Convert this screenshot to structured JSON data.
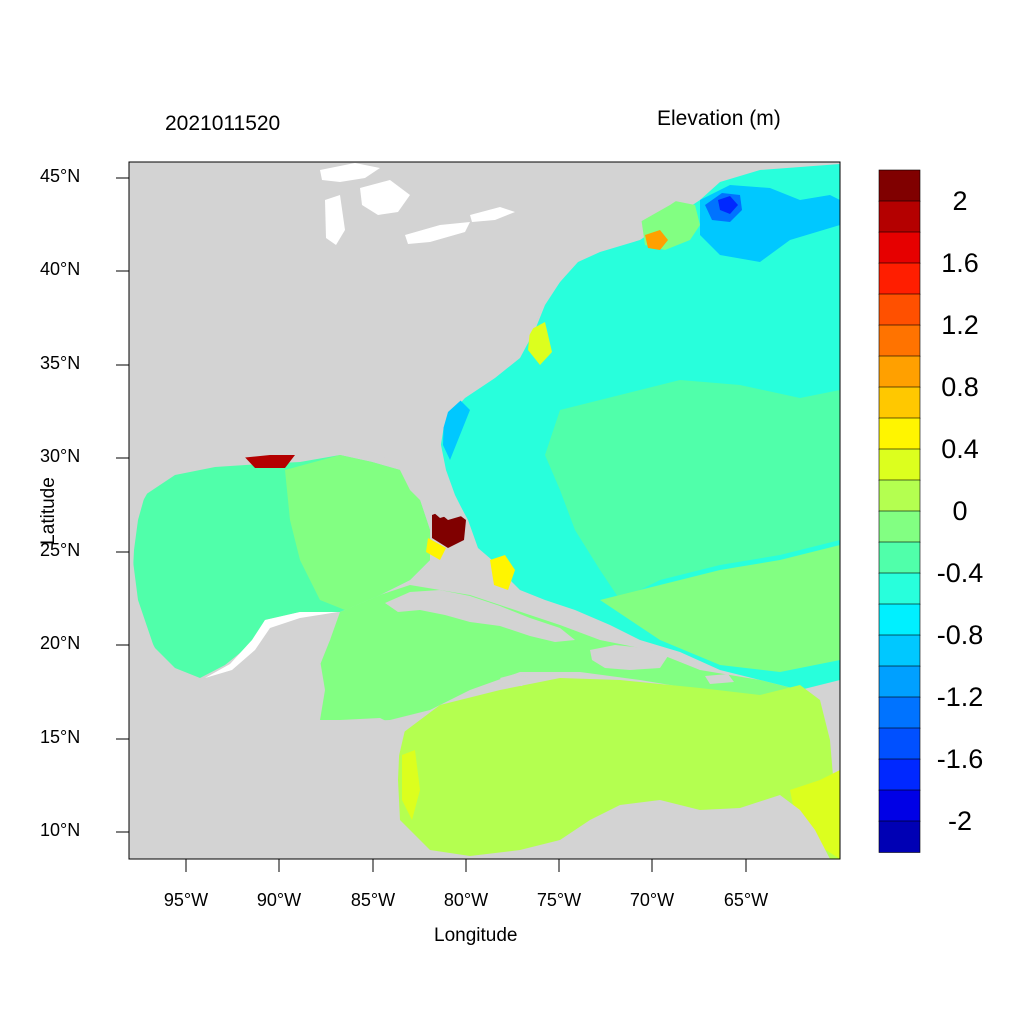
{
  "figure": {
    "title_left": "2021011520",
    "title_right": "Elevation (m)",
    "xlabel": "Longitude",
    "ylabel": "Latitude"
  },
  "map": {
    "lon_range": [
      -98,
      -60
    ],
    "lat_range": [
      8.5,
      46
    ],
    "land_color": "#d3d3d3",
    "lake_color": "#ffffff",
    "x_ticks": [
      "95°W",
      "90°W",
      "85°W",
      "80°W",
      "75°W",
      "70°W",
      "65°W"
    ],
    "y_ticks": [
      "45°N",
      "40°N",
      "35°N",
      "30°N",
      "25°N",
      "20°N",
      "15°N",
      "10°N"
    ]
  },
  "colorbar": {
    "colors": [
      "#800000",
      "#b40000",
      "#e60000",
      "#ff1e00",
      "#ff5000",
      "#ff7300",
      "#ffa000",
      "#ffc800",
      "#fff500",
      "#dcff1e",
      "#b4ff50",
      "#82ff82",
      "#50ffaa",
      "#28ffdc",
      "#00f0ff",
      "#00c8ff",
      "#00a0ff",
      "#0073ff",
      "#0050ff",
      "#0028ff",
      "#0000e6",
      "#0000b4"
    ],
    "tick_labels": [
      "2",
      "1.6",
      "1.2",
      "0.8",
      "0.4",
      "0",
      "-0.4",
      "-0.8",
      "-1.2",
      "-1.6",
      "-2"
    ]
  }
}
